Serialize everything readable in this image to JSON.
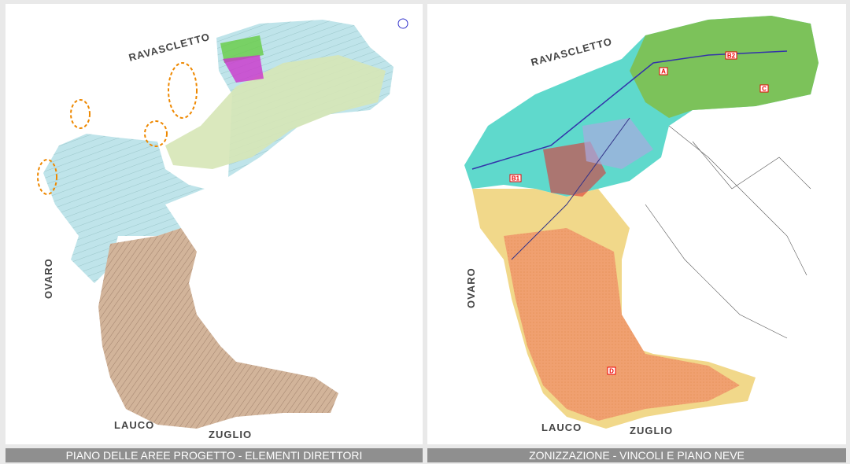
{
  "panels": [
    {
      "caption": "PIANO DELLE AREE PROGETTO - ELEMENTI DIRETTORI",
      "places": [
        "RAVASCLETTO",
        "OVARO",
        "LAUCO",
        "ZUGLIO"
      ]
    },
    {
      "caption": "ZONIZZAZIONE - VINCOLI E PIANO NEVE",
      "places": [
        "RAVASCLETTO",
        "OVARO",
        "LAUCO",
        "ZUGLIO"
      ],
      "zones": [
        "A",
        "B2",
        "C",
        "B1",
        "D"
      ]
    }
  ]
}
